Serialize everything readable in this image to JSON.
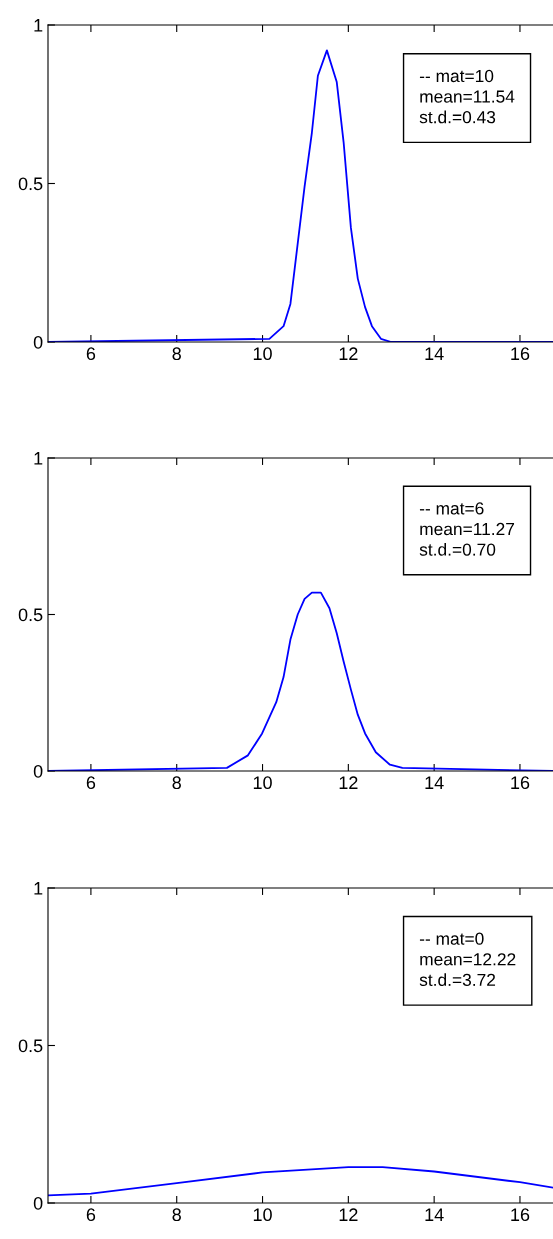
{
  "chart_data": [
    {
      "type": "line",
      "x": [
        5,
        10.16,
        10.49,
        10.65,
        10.98,
        11.15,
        11.29,
        11.5,
        11.73,
        11.89,
        12.06,
        12.22,
        12.39,
        12.55,
        12.76,
        13.0,
        16.77
      ],
      "values": [
        0,
        0.01,
        0.05,
        0.12,
        0.49,
        0.66,
        0.84,
        0.92,
        0.82,
        0.63,
        0.36,
        0.2,
        0.11,
        0.05,
        0.01,
        0,
        0
      ],
      "color": "#0000ff",
      "xlim": [
        5,
        16.77
      ],
      "ylim": [
        0,
        1
      ],
      "xticks": [
        6,
        8,
        10,
        12,
        14,
        16
      ],
      "yticks": [
        0,
        0.5,
        1
      ],
      "annotations": [
        "-- mat=10",
        "mean=11.54",
        "st.d.=0.43"
      ],
      "grid": false
    },
    {
      "type": "line",
      "x": [
        5,
        9.17,
        9.66,
        9.99,
        10.32,
        10.49,
        10.65,
        10.82,
        10.98,
        11.15,
        11.36,
        11.56,
        11.73,
        11.89,
        12.06,
        12.22,
        12.39,
        12.64,
        12.97,
        13.26,
        16.77
      ],
      "values": [
        0,
        0.01,
        0.05,
        0.12,
        0.22,
        0.3,
        0.42,
        0.5,
        0.55,
        0.57,
        0.57,
        0.52,
        0.44,
        0.35,
        0.26,
        0.18,
        0.12,
        0.06,
        0.02,
        0.01,
        0
      ],
      "color": "#0000ff",
      "xlim": [
        5,
        16.77
      ],
      "ylim": [
        0,
        1
      ],
      "xticks": [
        6,
        8,
        10,
        12,
        14,
        16
      ],
      "yticks": [
        0,
        0.5,
        1
      ],
      "annotations": [
        "-- mat=6",
        "mean=11.27",
        "st.d.=0.70"
      ],
      "grid": false
    },
    {
      "type": "line",
      "x": [
        5,
        6,
        8,
        10,
        12,
        12.8,
        14,
        16,
        16.77
      ],
      "values": [
        0.024,
        0.03,
        0.063,
        0.097,
        0.114,
        0.114,
        0.1,
        0.066,
        0.049
      ],
      "color": "#0000ff",
      "xlim": [
        5,
        16.77
      ],
      "ylim": [
        0,
        1
      ],
      "xticks": [
        6,
        8,
        10,
        12,
        14,
        16
      ],
      "yticks": [
        0,
        0.5,
        1
      ],
      "annotations": [
        "-- mat=0",
        "mean=12.22",
        "st.d.=3.72"
      ],
      "grid": false
    }
  ]
}
